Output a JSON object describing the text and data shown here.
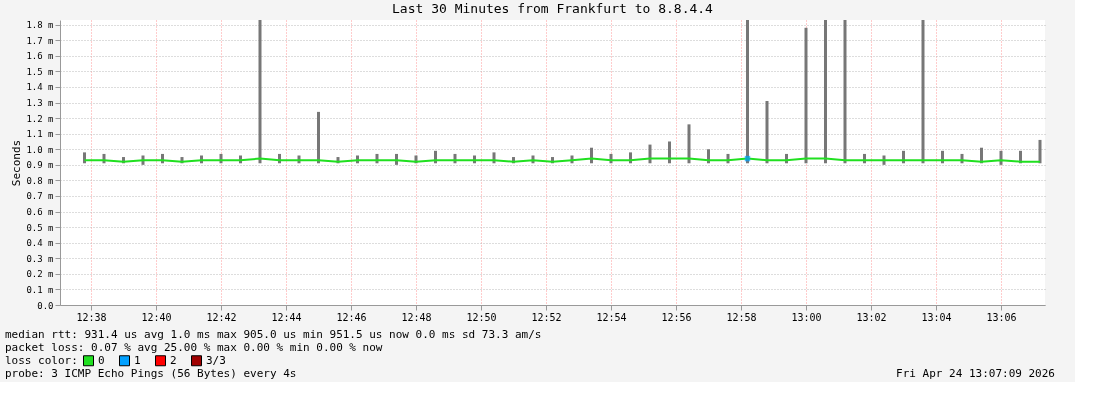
{
  "chart_data": {
    "type": "bar",
    "title": "Last 30 Minutes from Frankfurt to 8.8.4.4",
    "ylabel": "Seconds",
    "legend_title": "loss color:",
    "x": [
      12.63,
      12.64,
      12.65,
      12.66,
      12.67,
      12.68,
      12.69,
      12.7,
      12.71,
      12.72,
      12.73,
      12.74,
      12.75,
      12.76,
      12.77,
      12.78,
      12.79,
      12.8,
      12.81,
      12.82,
      12.83,
      12.84,
      12.85,
      12.86,
      12.87,
      12.88,
      12.89,
      12.9,
      12.91,
      12.92,
      12.93,
      12.94,
      12.95,
      12.96,
      12.97,
      12.98,
      12.99,
      13.0,
      13.01,
      13.02,
      13.03,
      13.04,
      13.05,
      13.06,
      13.07,
      13.08,
      13.09,
      13.1,
      13.11,
      13.12
    ],
    "series": [
      {
        "color": "#777777",
        "base": [
          0.91,
          0.91,
          0.91,
          0.9,
          0.91,
          0.91,
          0.91,
          0.91,
          0.91,
          0.91,
          0.91,
          0.91,
          0.91,
          0.91,
          0.91,
          0.91,
          0.9,
          0.91,
          0.91,
          0.91,
          0.91,
          0.91,
          0.91,
          0.91,
          0.91,
          0.91,
          0.91,
          0.91,
          0.91,
          0.91,
          0.91,
          0.91,
          0.91,
          0.91,
          0.91,
          0.91,
          0.91,
          0.91,
          0.91,
          0.91,
          0.91,
          0.9,
          0.91,
          0.91,
          0.91,
          0.91,
          0.91,
          0.9,
          0.91,
          0.91
        ],
        "values": [
          0.07,
          0.06,
          0.04,
          0.06,
          0.06,
          0.04,
          0.05,
          0.06,
          0.05,
          0.92,
          0.06,
          0.05,
          0.33,
          0.04,
          0.05,
          0.06,
          0.07,
          0.05,
          0.08,
          0.06,
          0.05,
          0.07,
          0.04,
          0.05,
          0.04,
          0.05,
          0.1,
          0.06,
          0.07,
          0.12,
          0.14,
          0.25,
          0.09,
          0.06,
          0.92,
          0.4,
          0.06,
          0.87,
          0.92,
          0.92,
          0.06,
          0.06,
          0.08,
          0.92,
          0.08,
          0.06,
          0.1,
          0.09,
          0.08,
          0.15
        ]
      },
      {
        "name": "0",
        "type": "line",
        "color": "#20e020",
        "values": [
          0.93,
          0.93,
          0.92,
          0.93,
          0.93,
          0.92,
          0.93,
          0.93,
          0.93,
          0.94,
          0.93,
          0.93,
          0.93,
          0.92,
          0.93,
          0.93,
          0.93,
          0.92,
          0.93,
          0.93,
          0.93,
          0.93,
          0.92,
          0.93,
          0.92,
          0.93,
          0.94,
          0.93,
          0.93,
          0.94,
          0.94,
          0.94,
          0.93,
          0.93,
          0.94,
          0.93,
          0.93,
          0.94,
          0.94,
          0.93,
          0.93,
          0.93,
          0.93,
          0.93,
          0.93,
          0.93,
          0.92,
          0.93,
          0.92,
          0.92
        ]
      },
      {
        "name": "1",
        "type": "scatter",
        "color": "#00a0ff",
        "values": [
          null,
          null,
          null,
          null,
          null,
          null,
          null,
          null,
          null,
          null,
          null,
          null,
          null,
          null,
          null,
          null,
          null,
          null,
          null,
          null,
          null,
          null,
          null,
          null,
          null,
          null,
          null,
          null,
          null,
          null,
          null,
          null,
          null,
          null,
          0.94,
          null,
          null,
          null,
          null,
          null,
          null,
          null,
          null,
          null,
          null,
          null,
          null,
          null,
          null,
          null
        ]
      },
      {
        "name": "2",
        "type": "scatter",
        "color": "#ff0000",
        "values": [
          null,
          null,
          null,
          null,
          null,
          null,
          null,
          null,
          null,
          null,
          null,
          null,
          null,
          null,
          null,
          null,
          null,
          null,
          null,
          null,
          null,
          null,
          null,
          null,
          null,
          null,
          null,
          null,
          null,
          null,
          null,
          null,
          null,
          null,
          null,
          null,
          null,
          null,
          null,
          null,
          null,
          null,
          null,
          null,
          null,
          null,
          null,
          null,
          null,
          null
        ]
      },
      {
        "name": "3/3",
        "type": "scatter",
        "color": "#a00000",
        "values": [
          null,
          null,
          null,
          null,
          null,
          null,
          null,
          null,
          null,
          null,
          null,
          null,
          null,
          null,
          null,
          null,
          null,
          null,
          null,
          null,
          null,
          null,
          null,
          null,
          null,
          null,
          null,
          null,
          null,
          null,
          null,
          null,
          null,
          null,
          null,
          null,
          null,
          null,
          null,
          null,
          null,
          null,
          null,
          null,
          null,
          null,
          null,
          null,
          null,
          null
        ]
      }
    ],
    "xlim": [
      12.62,
      13.12
    ],
    "xticks": [
      {
        "value": 12.6333,
        "label": "12:38"
      },
      {
        "value": 12.6667,
        "label": "12:40"
      },
      {
        "value": 12.7,
        "label": "12:42"
      },
      {
        "value": 12.7333,
        "label": "12:44"
      },
      {
        "value": 12.7667,
        "label": "12:46"
      },
      {
        "value": 12.8,
        "label": "12:48"
      },
      {
        "value": 12.8333,
        "label": "12:50"
      },
      {
        "value": 12.8667,
        "label": "12:52"
      },
      {
        "value": 12.9,
        "label": "12:54"
      },
      {
        "value": 12.9333,
        "label": "12:56"
      },
      {
        "value": 12.9667,
        "label": "12:58"
      },
      {
        "value": 13.0,
        "label": "13:00"
      },
      {
        "value": 13.0333,
        "label": "13:02"
      },
      {
        "value": 13.0667,
        "label": "13:04"
      },
      {
        "value": 13.1,
        "label": "13:06"
      }
    ],
    "ylim": [
      0,
      1.83
    ],
    "yticks": [
      {
        "value": 0,
        "label": "0.0"
      },
      {
        "value": 0.1,
        "label": "0.1 m"
      },
      {
        "value": 0.2,
        "label": "0.2 m"
      },
      {
        "value": 0.3,
        "label": "0.3 m"
      },
      {
        "value": 0.4,
        "label": "0.4 m"
      },
      {
        "value": 0.5,
        "label": "0.5 m"
      },
      {
        "value": 0.6,
        "label": "0.6 m"
      },
      {
        "value": 0.7,
        "label": "0.7 m"
      },
      {
        "value": 0.8,
        "label": "0.8 m"
      },
      {
        "value": 0.9,
        "label": "0.9 m"
      },
      {
        "value": 1.0,
        "label": "1.0 m"
      },
      {
        "value": 1.1,
        "label": "1.1 m"
      },
      {
        "value": 1.2,
        "label": "1.2 m"
      },
      {
        "value": 1.3,
        "label": "1.3 m"
      },
      {
        "value": 1.4,
        "label": "1.4 m"
      },
      {
        "value": 1.5,
        "label": "1.5 m"
      },
      {
        "value": 1.6,
        "label": "1.6 m"
      },
      {
        "value": 1.7,
        "label": "1.7 m"
      },
      {
        "value": 1.8,
        "label": "1.8 m"
      }
    ],
    "grid": true,
    "legend": "bottom",
    "annotations": [
      "median rtt:  931.4 us avg  1.0 ms max  905.0 us min  951.5 us now  0.0 ms sd  73.3   am/s",
      "packet loss: 0.07 % avg  25.00 % max  0.00 % min  0.00 % now",
      "probe:       3 ICMP Echo Pings (56 Bytes) every 4s",
      "Fri Apr 24 13:07:09 2026"
    ]
  }
}
